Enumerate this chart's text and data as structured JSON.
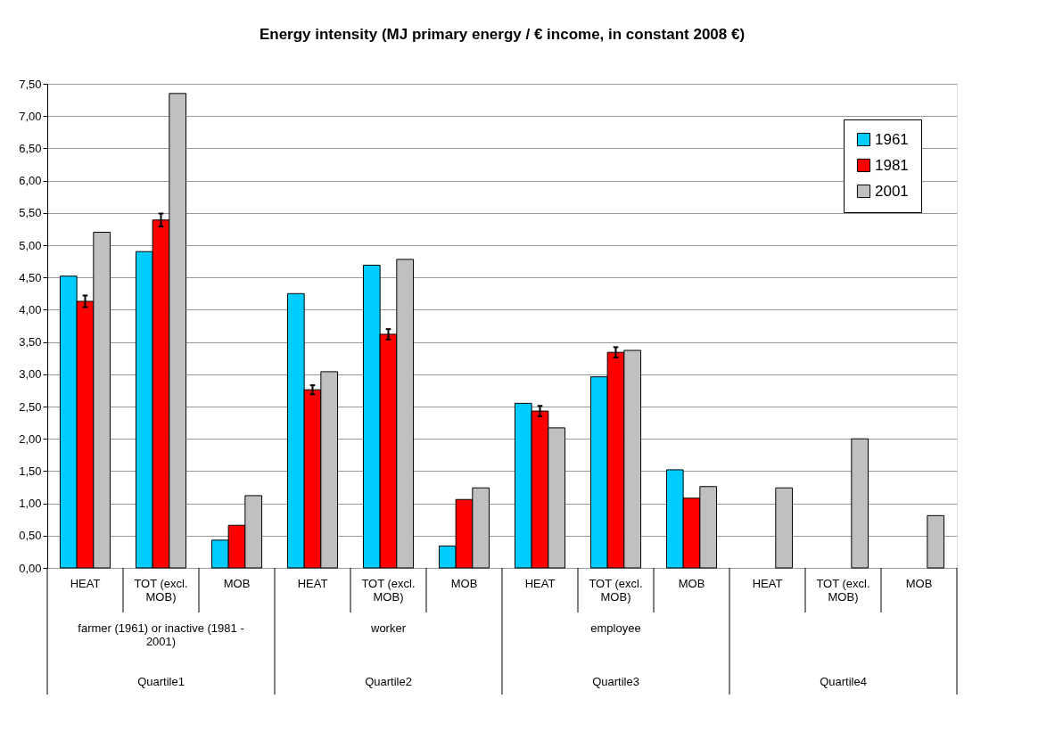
{
  "chart_data": {
    "type": "bar",
    "title": "Energy intensity (MJ primary energy / € income, in constant 2008 €)",
    "categories": [
      "HEAT",
      "TOT (excl. MOB)",
      "MOB",
      "HEAT",
      "TOT (excl. MOB)",
      "MOB",
      "HEAT",
      "TOT (excl. MOB)",
      "MOB",
      "HEAT",
      "TOT (excl. MOB)",
      "MOB"
    ],
    "series": [
      {
        "name": "1961",
        "color": "#00ccff",
        "values": [
          4.52,
          4.9,
          0.43,
          4.25,
          4.69,
          0.34,
          2.55,
          2.96,
          1.52,
          null,
          null,
          null
        ]
      },
      {
        "name": "1981",
        "color": "#ff0000",
        "values": [
          4.13,
          5.39,
          0.66,
          2.76,
          3.62,
          1.06,
          2.43,
          3.34,
          1.08,
          null,
          null,
          null
        ],
        "errors": [
          0.09,
          0.1,
          null,
          0.07,
          0.08,
          null,
          0.08,
          0.08,
          null,
          null,
          null,
          null
        ]
      },
      {
        "name": "2001",
        "color": "#c0c0c0",
        "values": [
          5.2,
          7.35,
          1.12,
          3.04,
          4.78,
          1.24,
          2.17,
          3.37,
          1.26,
          1.24,
          2.0,
          0.81
        ]
      }
    ],
    "annotations": [
      "farmer (1961) or inactive (1981 - 2001)",
      "worker",
      "employee",
      "Quartile1",
      "Quartile2",
      "Quartile3",
      "Quartile4"
    ],
    "ylim": [
      0,
      7.5
    ],
    "yticks": [
      {
        "value": 0,
        "label": "0,00"
      },
      {
        "value": 0.5,
        "label": "0,50"
      },
      {
        "value": 1,
        "label": "1,00"
      },
      {
        "value": 1.5,
        "label": "1,50"
      },
      {
        "value": 2,
        "label": "2,00"
      },
      {
        "value": 2.5,
        "label": "2,50"
      },
      {
        "value": 3,
        "label": "3,00"
      },
      {
        "value": 3.5,
        "label": "3,50"
      },
      {
        "value": 4,
        "label": "4,00"
      },
      {
        "value": 4.5,
        "label": "4,50"
      },
      {
        "value": 5,
        "label": "5,00"
      },
      {
        "value": 5.5,
        "label": "5,50"
      },
      {
        "value": 6,
        "label": "6,00"
      },
      {
        "value": 6.5,
        "label": "6,50"
      },
      {
        "value": 7,
        "label": "7,00"
      },
      {
        "value": 7.5,
        "label": "7,50"
      }
    ],
    "grid": "y",
    "legend": "top right"
  }
}
